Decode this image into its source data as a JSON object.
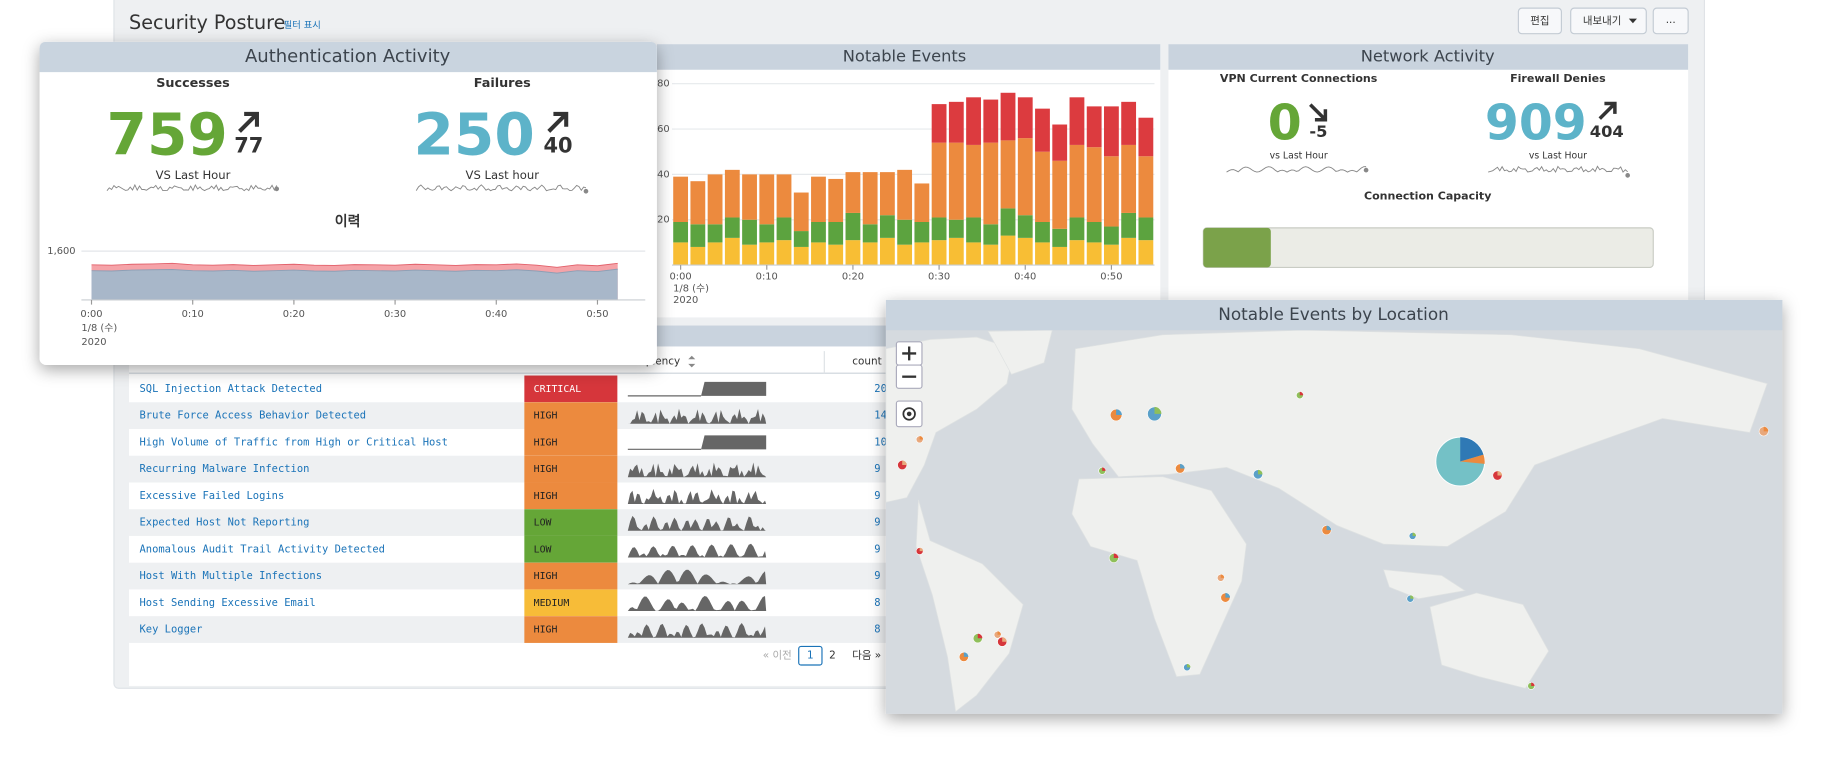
{
  "header": {
    "title": "Security Posture",
    "filter_link": "필터 표시",
    "buttons": [
      "편집",
      "내보내기",
      "..."
    ]
  },
  "auth_activity": {
    "title": "Authentication Activity",
    "successes": {
      "label": "Successes",
      "value": 759,
      "change": 77,
      "compare": "VS Last Hour",
      "color": "#65a637"
    },
    "failures": {
      "label": "Failures",
      "value": 250,
      "change": 40,
      "compare": "VS Last hour",
      "color": "#5db3c9"
    },
    "history": {
      "type": "area",
      "title": "이력",
      "x": [
        0,
        2,
        4,
        6,
        8,
        10,
        12,
        14,
        16,
        18,
        20,
        22,
        24,
        26,
        28,
        30,
        32,
        34,
        36,
        38,
        40,
        42,
        44,
        46,
        48,
        50,
        52
      ],
      "series": [
        {
          "color": "#f5a3a8",
          "values": [
            1150,
            1140,
            1170,
            1180,
            1200,
            1150,
            1140,
            1160,
            1130,
            1150,
            1170,
            1140,
            1130,
            1160,
            1150,
            1140,
            1170,
            1150,
            1130,
            1160,
            1150,
            1180,
            1140,
            1070,
            1150,
            1120,
            1200
          ]
        },
        {
          "color": "#a8b7c9",
          "values": [
            960,
            950,
            980,
            990,
            1000,
            960,
            950,
            970,
            940,
            960,
            980,
            950,
            940,
            970,
            960,
            950,
            980,
            960,
            940,
            970,
            960,
            990,
            950,
            880,
            960,
            930,
            1010
          ]
        }
      ],
      "xlim": [
        -1,
        53
      ],
      "ylim": [
        0,
        1600
      ],
      "yticks": [
        {
          "value": 1600,
          "label": "1,600"
        }
      ],
      "xticks": [
        {
          "value": 0,
          "label": "0:00"
        },
        {
          "value": 10,
          "label": "0:10"
        },
        {
          "value": 20,
          "label": "0:20"
        },
        {
          "value": 30,
          "label": "0:30"
        },
        {
          "value": 40,
          "label": "0:40"
        },
        {
          "value": 50,
          "label": "0:50"
        }
      ],
      "x_date_labels": [
        "1/8 (수)",
        "2020"
      ]
    }
  },
  "notable_events": {
    "title": "Notable Events",
    "chart": {
      "type": "bar",
      "stacked": true,
      "x": [
        0,
        2,
        4,
        6,
        8,
        10,
        12,
        14,
        16,
        18,
        20,
        22,
        24,
        26,
        28,
        30,
        32,
        34,
        36,
        38,
        40,
        42,
        44,
        46,
        48,
        50,
        52,
        54
      ],
      "series": [
        {
          "color": "#f8be34",
          "values": [
            10,
            8,
            10,
            12,
            9,
            10,
            11,
            8,
            10,
            9,
            11,
            10,
            12,
            9,
            10,
            11,
            12,
            10,
            9,
            13,
            12,
            10,
            8,
            11,
            10,
            9,
            12,
            11
          ]
        },
        {
          "color": "#5ca33f",
          "values": [
            9,
            10,
            8,
            9,
            11,
            8,
            10,
            7,
            9,
            10,
            12,
            8,
            10,
            11,
            9,
            10,
            8,
            11,
            9,
            12,
            10,
            9,
            8,
            10,
            9,
            8,
            11,
            10
          ]
        },
        {
          "color": "#ec8a3e",
          "values": [
            20,
            19,
            22,
            21,
            20,
            22,
            19,
            17,
            20,
            19,
            18,
            23,
            19,
            22,
            17,
            33,
            34,
            32,
            36,
            30,
            34,
            31,
            30,
            32,
            33,
            31,
            30,
            27
          ]
        },
        {
          "color": "#dc3b3f",
          "values": [
            0,
            0,
            0,
            0,
            0,
            0,
            0,
            0,
            0,
            0,
            0,
            0,
            0,
            0,
            0,
            17,
            18,
            21,
            19,
            21,
            18,
            19,
            16,
            21,
            18,
            22,
            19,
            17
          ]
        }
      ],
      "xlim": [
        -1,
        55
      ],
      "ylim": [
        0,
        80
      ],
      "yticks": [
        20,
        40,
        60,
        80
      ],
      "xticks": [
        {
          "value": 0,
          "label": "0:00"
        },
        {
          "value": 10,
          "label": "0:10"
        },
        {
          "value": 20,
          "label": "0:20"
        },
        {
          "value": 30,
          "label": "0:30"
        },
        {
          "value": 40,
          "label": "0:40"
        },
        {
          "value": 50,
          "label": "0:50"
        }
      ],
      "x_date_labels": [
        "1/8 (수)",
        "2020"
      ]
    }
  },
  "network_activity": {
    "title": "Network Activity",
    "vpn": {
      "label": "VPN Current Connections",
      "value": 0,
      "change": -5,
      "compare": "vs Last Hour",
      "color": "#65a637"
    },
    "firewall": {
      "label": "Firewall Denies",
      "value": 909,
      "change": 404,
      "compare": "vs Last Hour",
      "color": "#5db3c9"
    },
    "connection_capacity": {
      "label": "Connection Capacity",
      "value": 15,
      "range": [
        0,
        100
      ],
      "color": "#7ba24a"
    }
  },
  "table": {
    "columns": [
      "frequency",
      "count"
    ],
    "severity_colors": {
      "CRITICAL": "#d6363b",
      "HIGH": "#ec8a3e",
      "LOW": "#65a637",
      "MEDIUM": "#f7bc38"
    },
    "rows": [
      {
        "name": "SQL Injection Attack Detected",
        "severity": "CRITICAL",
        "count": 20
      },
      {
        "name": "Brute Force Access Behavior Detected",
        "severity": "HIGH",
        "count": 14
      },
      {
        "name": "High Volume of Traffic from High or Critical Host",
        "severity": "HIGH",
        "count": 10
      },
      {
        "name": "Recurring Malware Infection",
        "severity": "HIGH",
        "count": 9
      },
      {
        "name": "Excessive Failed Logins",
        "severity": "HIGH",
        "count": 9
      },
      {
        "name": "Expected Host Not Reporting",
        "severity": "LOW",
        "count": 9
      },
      {
        "name": "Anomalous Audit Trail Activity Detected",
        "severity": "LOW",
        "count": 9
      },
      {
        "name": "Host With Multiple Infections",
        "severity": "HIGH",
        "count": 9
      },
      {
        "name": "Host Sending Excessive Email",
        "severity": "MEDIUM",
        "count": 8
      },
      {
        "name": "Key Logger",
        "severity": "HIGH",
        "count": 8
      }
    ],
    "pagination": {
      "prev": "« 이전",
      "pages": [
        "1",
        "2"
      ],
      "next": "다음 »"
    }
  },
  "map": {
    "title": "Notable Events by Location"
  }
}
